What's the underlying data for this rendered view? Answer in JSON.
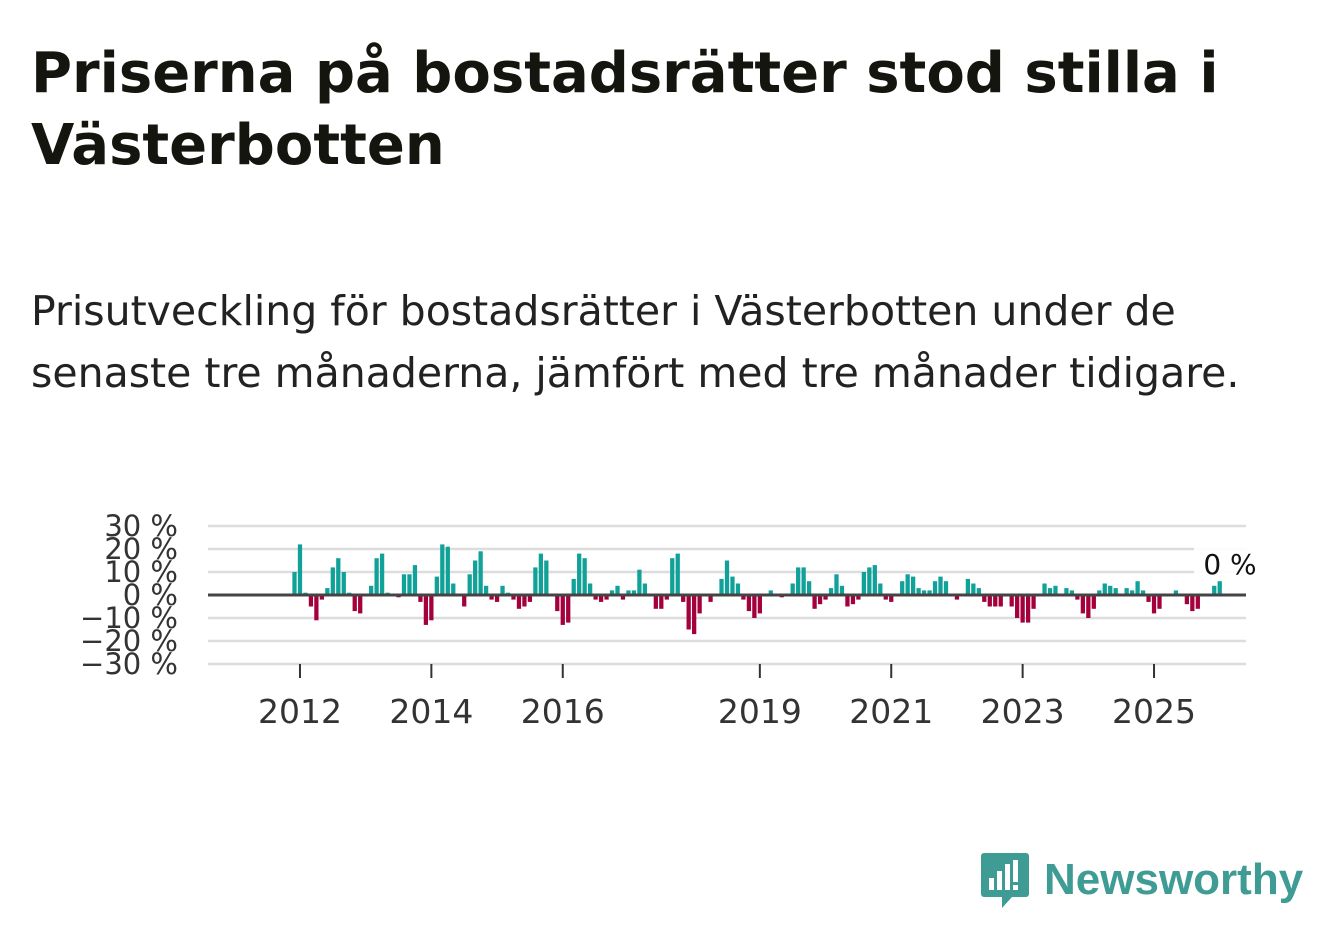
{
  "title": "Priserna på bostadsrätter stod stilla i Västerbotten",
  "subtitle": "Prisutveckling för bostadsrätter i Västerbotten under de senaste tre månaderna, jämfört med tre månader tidigare.",
  "brand": {
    "name": "Newsworthy",
    "color": "#3e9c94"
  },
  "colors": {
    "positive": "#10a199",
    "negative": "#a3003c",
    "grid": "#dddddd",
    "zero": "#444444"
  },
  "chart_data": {
    "type": "bar",
    "title": "Priserna på bostadsrätter stod stilla i Västerbotten",
    "xlabel": "",
    "ylabel": "",
    "ylim": [
      -30,
      30
    ],
    "yticks": [
      30,
      20,
      10,
      0,
      -10,
      -20,
      -30
    ],
    "ytick_labels": [
      "30 %",
      "20 %",
      "10 %",
      "0 %",
      "−10 %",
      "−20 %",
      "−30 %"
    ],
    "x_range": [
      2010.6,
      2026.4
    ],
    "x_ticks": [
      2012,
      2014,
      2016,
      2019,
      2021,
      2023,
      2025
    ],
    "x_tick_labels": [
      "2012",
      "2014",
      "2016",
      "2019",
      "2021",
      "2023",
      "2025"
    ],
    "last_value_label": "0 %",
    "series": [
      {
        "name": "Prisutveckling",
        "start": "2011-12",
        "frequency": "monthly",
        "values": [
          10,
          22,
          1,
          -5,
          -11,
          -2,
          3,
          12,
          16,
          10,
          1,
          -7,
          -8,
          0,
          4,
          16,
          18,
          1,
          0,
          -1,
          9,
          9,
          13,
          -3,
          -13,
          -11,
          8,
          22,
          21,
          5,
          0,
          -5,
          9,
          15,
          19,
          4,
          -2,
          -3,
          4,
          1,
          -2,
          -6,
          -5,
          -3,
          12,
          18,
          15,
          0,
          -7,
          -13,
          -12,
          7,
          18,
          16,
          5,
          -2,
          -3,
          -2,
          2,
          4,
          -2,
          2,
          2,
          11,
          5,
          0,
          -6,
          -6,
          -2,
          16,
          18,
          -3,
          -15,
          -17,
          -8,
          0,
          -3,
          0,
          7,
          15,
          8,
          5,
          -2,
          -7,
          -10,
          -8,
          0,
          2,
          0,
          -1,
          0,
          5,
          12,
          12,
          6,
          -6,
          -4,
          -2,
          3,
          9,
          4,
          -5,
          -4,
          -2,
          10,
          12,
          13,
          5,
          -2,
          -3,
          0,
          6,
          9,
          8,
          3,
          2,
          2,
          6,
          8,
          6,
          0,
          -2,
          0,
          7,
          5,
          3,
          -3,
          -5,
          -5,
          -5,
          0,
          -5,
          -10,
          -12,
          -12,
          -6,
          0,
          5,
          3,
          4,
          0,
          3,
          2,
          -2,
          -8,
          -10,
          -6,
          2,
          5,
          4,
          3,
          0,
          3,
          2,
          6,
          2,
          -3,
          -8,
          -6,
          0,
          0,
          2,
          0,
          -4,
          -7,
          -6,
          0,
          0,
          4,
          6
        ]
      }
    ]
  }
}
